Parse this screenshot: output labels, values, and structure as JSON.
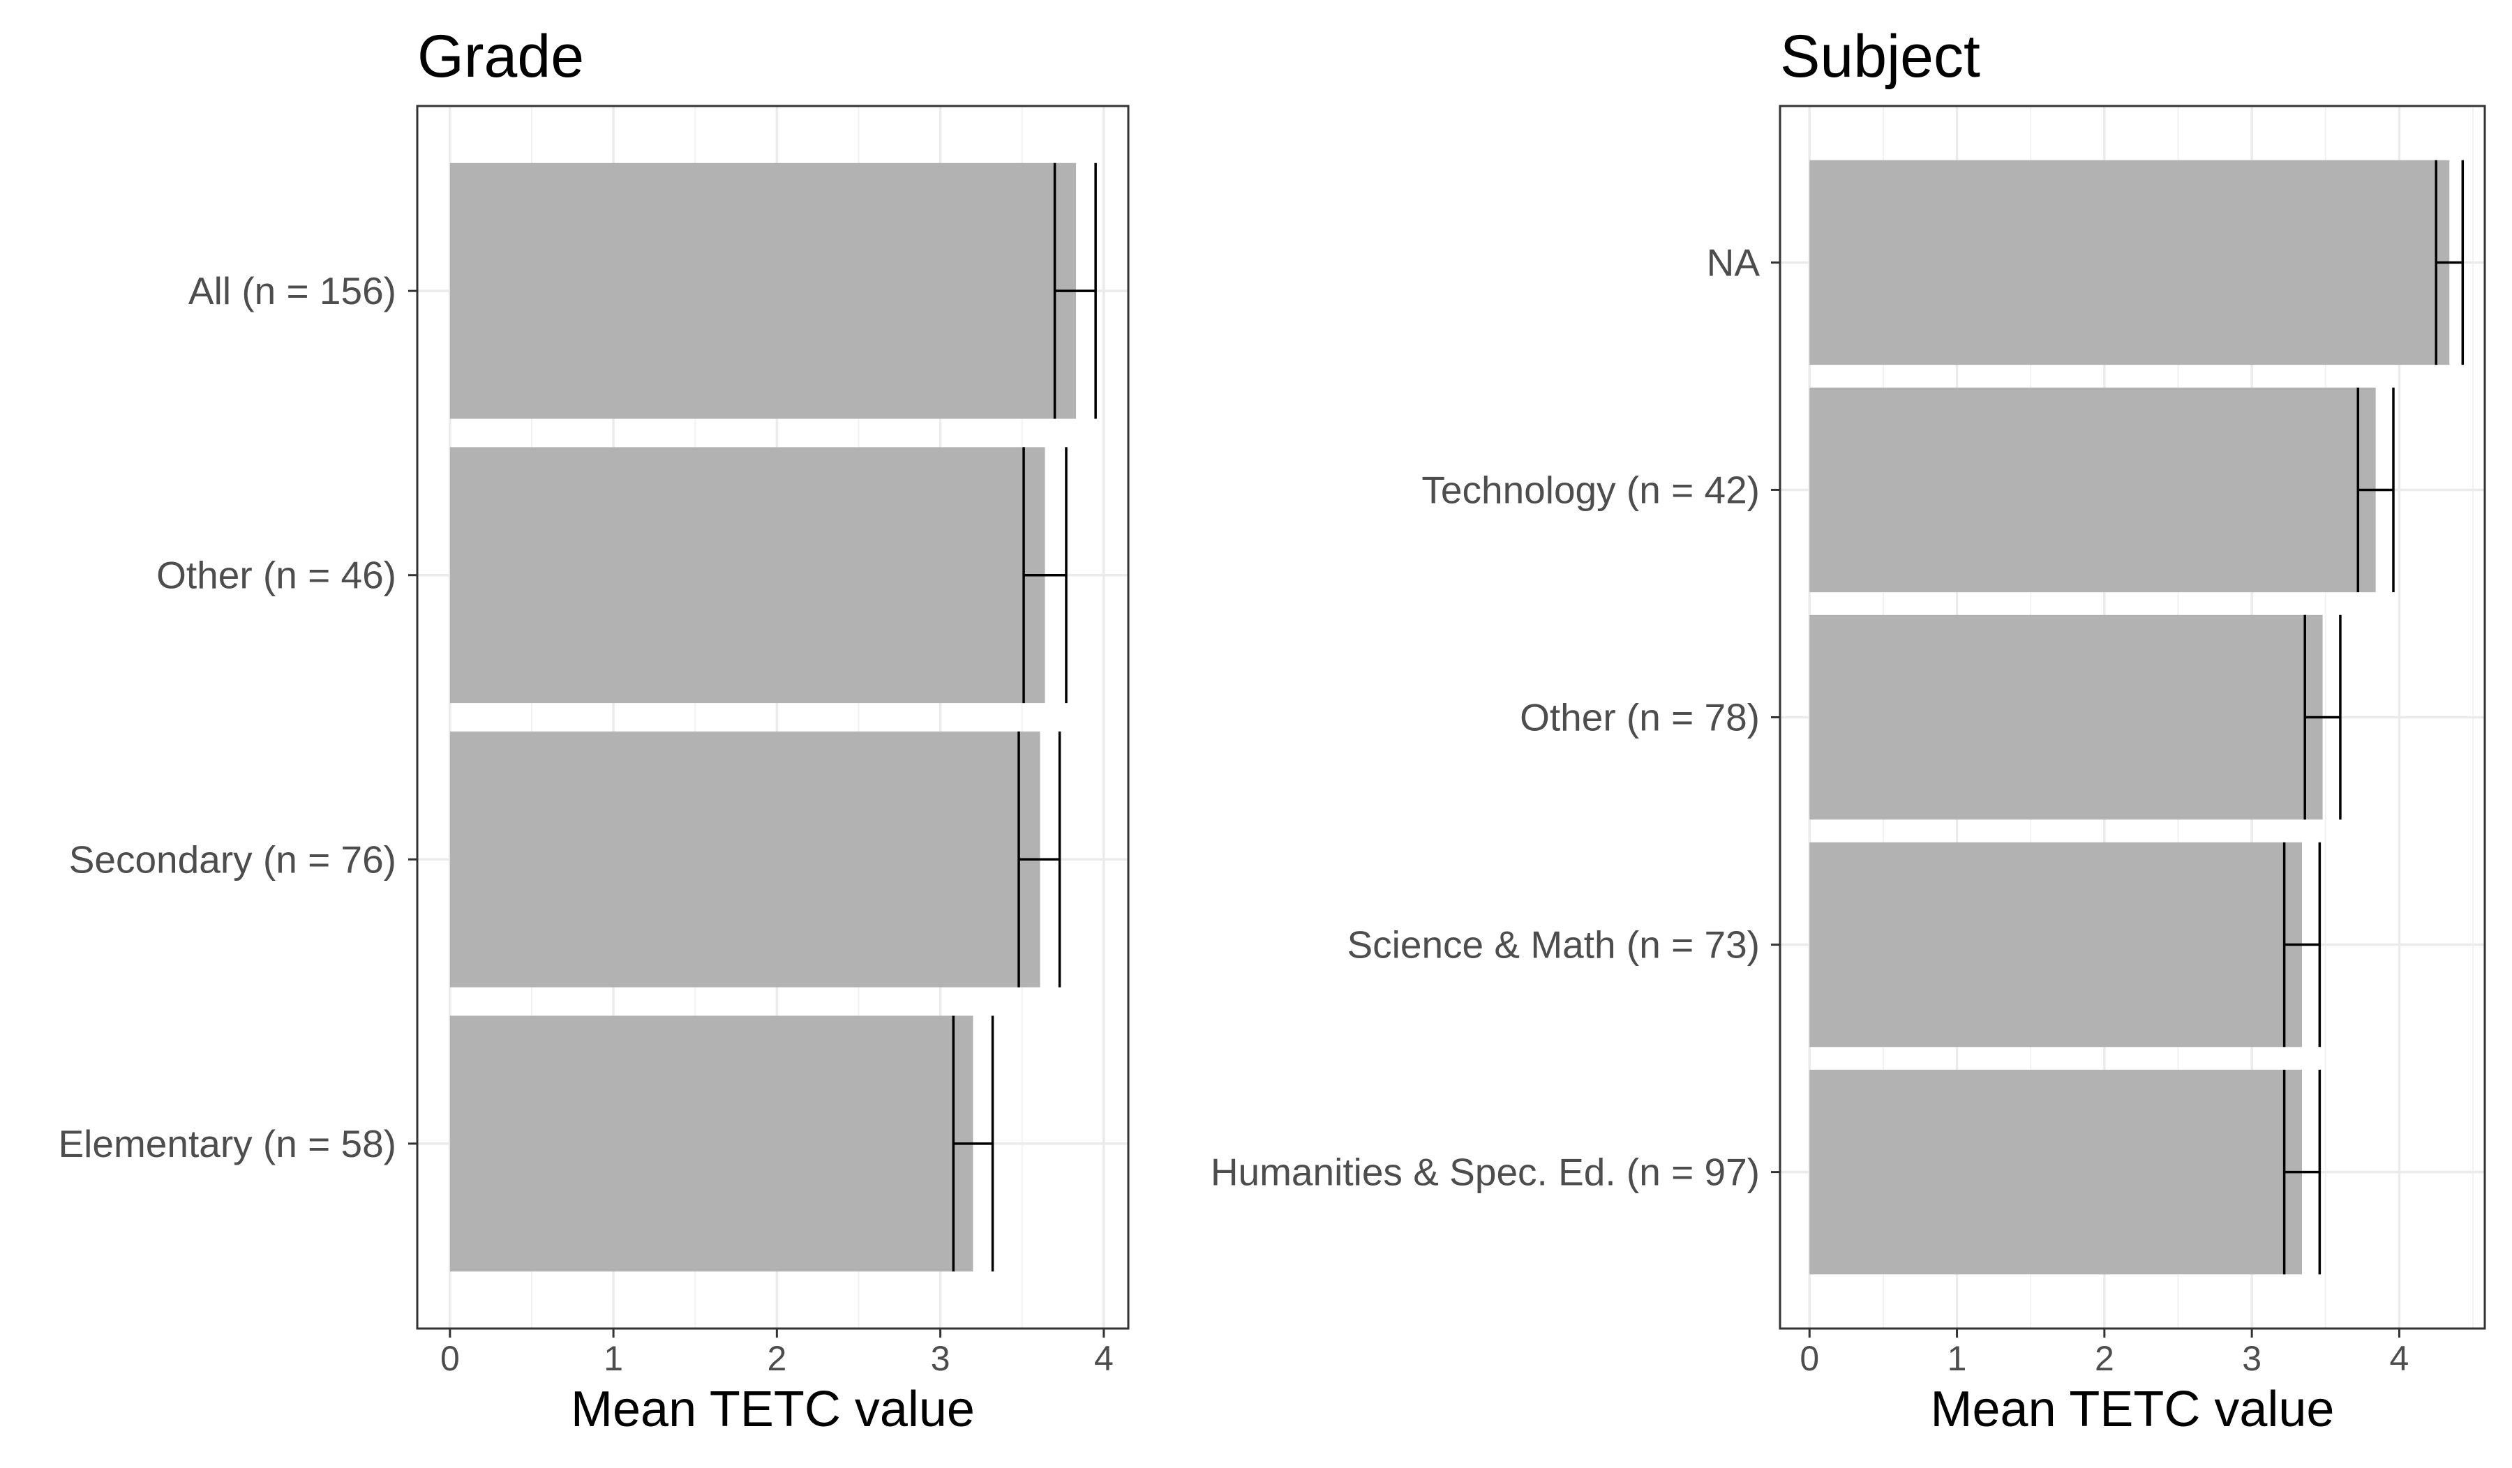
{
  "chart_data": [
    {
      "type": "bar",
      "orientation": "horizontal",
      "title": "Grade",
      "xlabel": "Mean TETC value",
      "ylabel": "",
      "xlim": [
        -0.2,
        4.15
      ],
      "xticks": [
        "0",
        "1",
        "2",
        "3",
        "4"
      ],
      "grid": true,
      "bar_color": "#b2b2b2",
      "categories": [
        "All (n = 156)",
        "Other (n = 46)",
        "Secondary (n = 76)",
        "Elementary (n = 58)"
      ],
      "values": [
        3.83,
        3.64,
        3.61,
        3.2
      ],
      "error_low": [
        3.7,
        3.51,
        3.48,
        3.08
      ],
      "error_high": [
        3.95,
        3.77,
        3.73,
        3.32
      ]
    },
    {
      "type": "bar",
      "orientation": "horizontal",
      "title": "Subject",
      "xlabel": "Mean TETC value",
      "ylabel": "",
      "xlim": [
        -0.2,
        4.58
      ],
      "xticks": [
        "0",
        "1",
        "2",
        "3",
        "4"
      ],
      "grid": true,
      "bar_color": "#b2b2b2",
      "categories": [
        "NA",
        "Technology (n = 42)",
        "Other (n = 78)",
        "Science & Math (n = 73)",
        "Humanities & Spec. Ed. (n = 97)"
      ],
      "values": [
        4.34,
        3.84,
        3.48,
        3.34,
        3.34
      ],
      "error_low": [
        4.25,
        3.72,
        3.36,
        3.22,
        3.22
      ],
      "error_high": [
        4.43,
        3.96,
        3.6,
        3.46,
        3.46
      ]
    }
  ]
}
